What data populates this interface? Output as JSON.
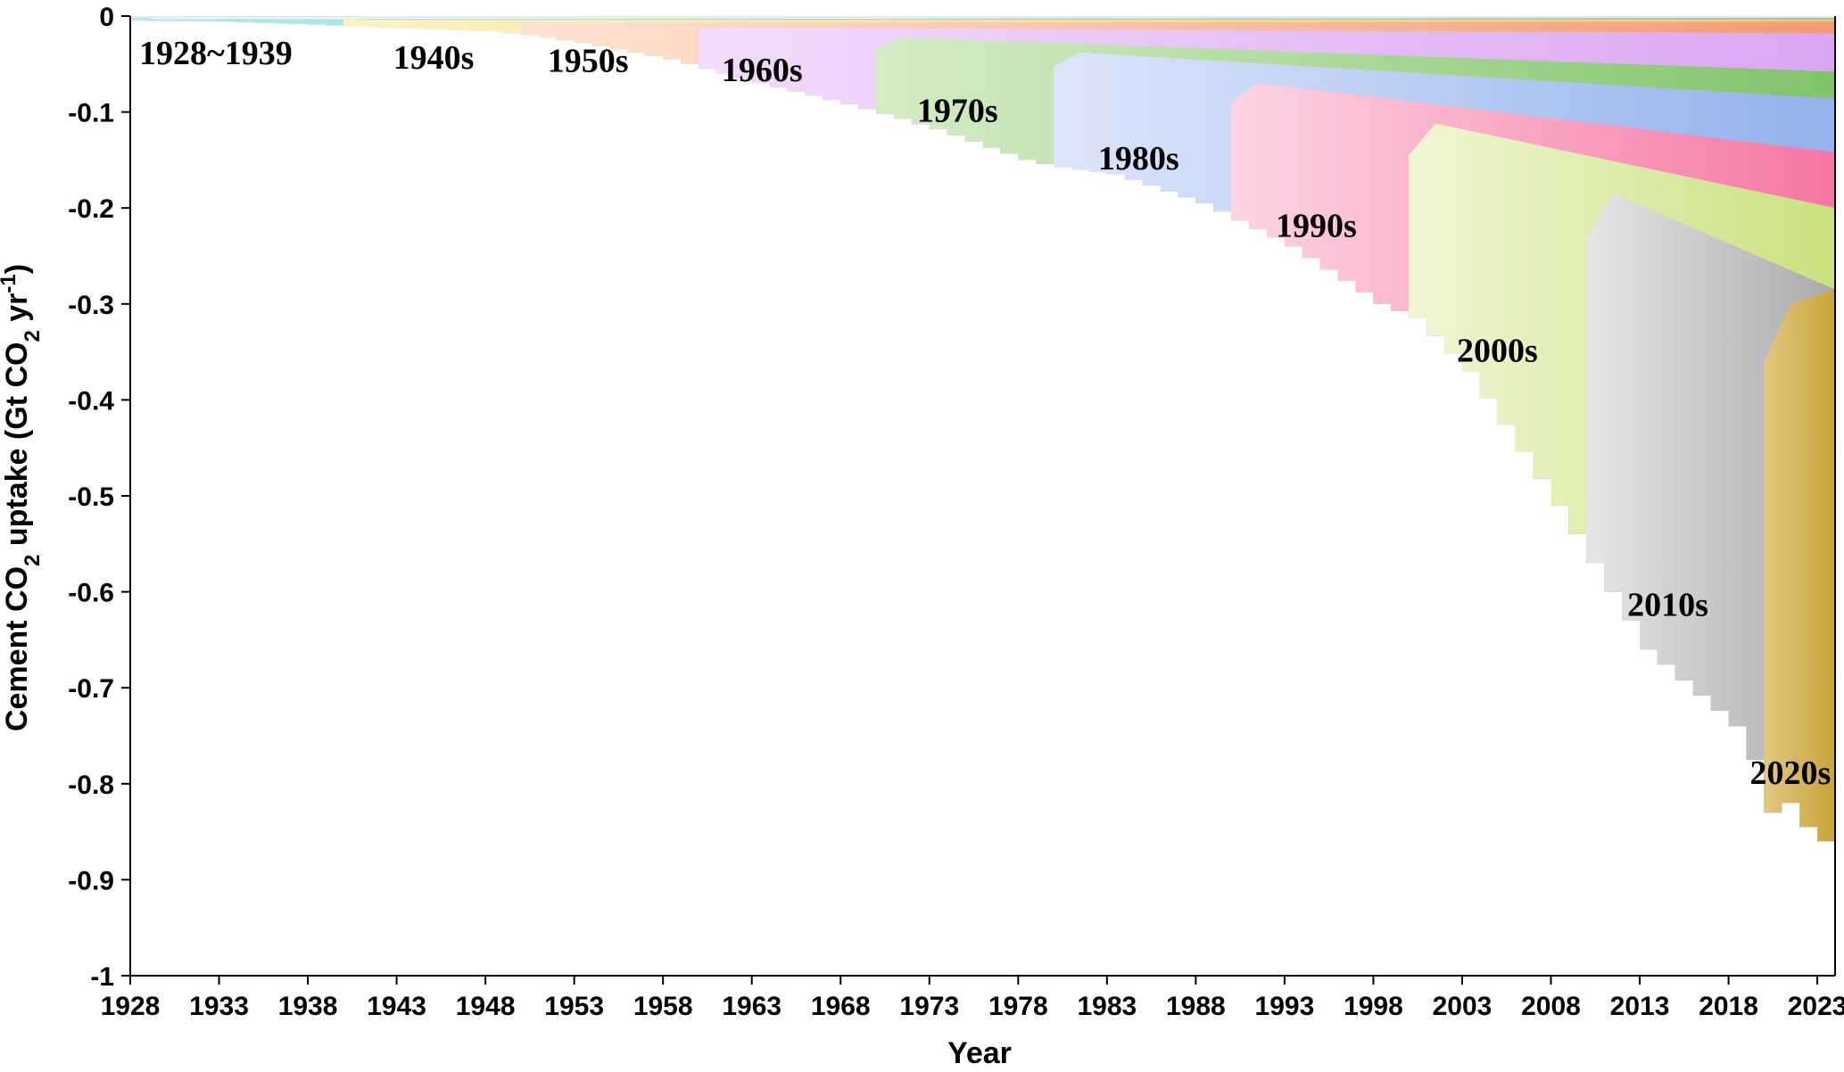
{
  "chart_data": {
    "type": "area",
    "xlabel": "Year",
    "ylabel": "Cement CO2 uptake (Gt CO2 yr-1)",
    "ylabel_parts": {
      "pre": "Cement CO",
      "sub1": "2",
      "mid": " uptake (Gt CO",
      "sub2": "2",
      "unit": " yr",
      "sup": "-1",
      "post": ")"
    },
    "xlim": [
      1928,
      2024
    ],
    "ylim": [
      -1,
      0
    ],
    "x_ticks": [
      1928,
      1933,
      1938,
      1943,
      1948,
      1953,
      1958,
      1963,
      1968,
      1973,
      1978,
      1983,
      1988,
      1993,
      1998,
      2003,
      2008,
      2013,
      2018,
      2023
    ],
    "x_tick_labels": [
      "1928",
      "1933",
      "1938",
      "1943",
      "1948",
      "1953",
      "1958",
      "1963",
      "1968",
      "1973",
      "1978",
      "1983",
      "1988",
      "1993",
      "1998",
      "2003",
      "2008",
      "2013",
      "2018",
      "2023"
    ],
    "y_ticks": [
      0,
      -0.1,
      -0.2,
      -0.3,
      -0.4,
      -0.5,
      -0.6,
      -0.7,
      -0.8,
      -0.9,
      -1
    ],
    "y_tick_labels": [
      "0",
      "-0.1",
      "-0.2",
      "-0.3",
      "-0.4",
      "-0.5",
      "-0.6",
      "-0.7",
      "-0.8",
      "-0.9",
      "-1"
    ],
    "total_uptake_by_year": {
      "x": [
        1928,
        1933,
        1938,
        1940,
        1943,
        1948,
        1950,
        1953,
        1958,
        1960,
        1963,
        1968,
        1970,
        1973,
        1978,
        1980,
        1983,
        1988,
        1990,
        1993,
        1998,
        2000,
        2003,
        2008,
        2010,
        2013,
        2018,
        2019,
        2020,
        2021,
        2022,
        2023,
        2024
      ],
      "y": [
        -0.005,
        -0.006,
        -0.009,
        -0.011,
        -0.013,
        -0.016,
        -0.02,
        -0.028,
        -0.045,
        -0.055,
        -0.07,
        -0.092,
        -0.102,
        -0.118,
        -0.15,
        -0.158,
        -0.165,
        -0.195,
        -0.213,
        -0.24,
        -0.3,
        -0.315,
        -0.37,
        -0.51,
        -0.57,
        -0.66,
        -0.74,
        -0.775,
        -0.83,
        -0.82,
        -0.845,
        -0.86,
        -0.86
      ]
    },
    "series": [
      {
        "name": "1928~1939",
        "start": 1928,
        "end": 1940,
        "top_before": 0.0,
        "top_mid": -0.003,
        "top_end": -0.002,
        "color_light": "#b3ecec",
        "color_dark": "#48c4c8"
      },
      {
        "name": "1940s",
        "start": 1940,
        "end": 1950,
        "top_before": -0.003,
        "top_mid": -0.004,
        "top_end": -0.003,
        "color_light": "#fdf3c4",
        "color_dark": "#f5c96a"
      },
      {
        "name": "1950s",
        "start": 1950,
        "end": 1960,
        "top_before": -0.005,
        "top_mid": -0.007,
        "top_end": -0.006,
        "color_light": "#fde3d2",
        "color_dark": "#f49b72"
      },
      {
        "name": "1960s",
        "start": 1960,
        "end": 1970,
        "top_before": -0.013,
        "top_mid": -0.012,
        "top_end": -0.018,
        "color_light": "#f2dcfb",
        "color_dark": "#dba6f2"
      },
      {
        "name": "1970s",
        "start": 1970,
        "end": 1980,
        "top_before": -0.034,
        "top_mid": -0.022,
        "top_end": -0.058,
        "color_light": "#d6ecc6",
        "color_dark": "#7fc46a"
      },
      {
        "name": "1980s",
        "start": 1980,
        "end": 1990,
        "top_before": -0.052,
        "top_mid": -0.038,
        "top_end": -0.086,
        "color_light": "#dce6fa",
        "color_dark": "#93b1ec"
      },
      {
        "name": "1990s",
        "start": 1990,
        "end": 2000,
        "top_before": -0.09,
        "top_mid": -0.07,
        "top_end": -0.142,
        "color_light": "#fdd4e4",
        "color_dark": "#f576a3"
      },
      {
        "name": "2000s",
        "start": 2000,
        "end": 2010,
        "top_before": -0.145,
        "top_mid": -0.112,
        "top_end": -0.2,
        "color_light": "#f0f6d4",
        "color_dark": "#c8e27e"
      },
      {
        "name": "2010s",
        "start": 2010,
        "end": 2020,
        "top_before": -0.232,
        "top_mid": -0.185,
        "top_end": -0.285,
        "color_light": "#e6e6e6",
        "color_dark": "#aaaaaa"
      },
      {
        "name": "2020s",
        "start": 2020,
        "end": 2024,
        "top_before": -0.36,
        "top_mid": -0.3,
        "top_end": -0.285,
        "color_light": "#e2c880",
        "color_dark": "#c9a43a"
      }
    ],
    "annotations": [
      {
        "text": "1928~1939",
        "x": 1928.5,
        "y": -0.05
      },
      {
        "text": "1940s",
        "x": 1942.8,
        "y": -0.055
      },
      {
        "text": "1950s",
        "x": 1951.5,
        "y": -0.058
      },
      {
        "text": "1960s",
        "x": 1961.3,
        "y": -0.068
      },
      {
        "text": "1970s",
        "x": 1972.3,
        "y": -0.11
      },
      {
        "text": "1980s",
        "x": 1982.5,
        "y": -0.16
      },
      {
        "text": "1990s",
        "x": 1992.5,
        "y": -0.23
      },
      {
        "text": "2000s",
        "x": 2002.7,
        "y": -0.36
      },
      {
        "text": "2010s",
        "x": 2012.3,
        "y": -0.625
      },
      {
        "text": "2020s",
        "x": 2019.2,
        "y": -0.8
      }
    ],
    "grid": false,
    "legend": "none"
  }
}
